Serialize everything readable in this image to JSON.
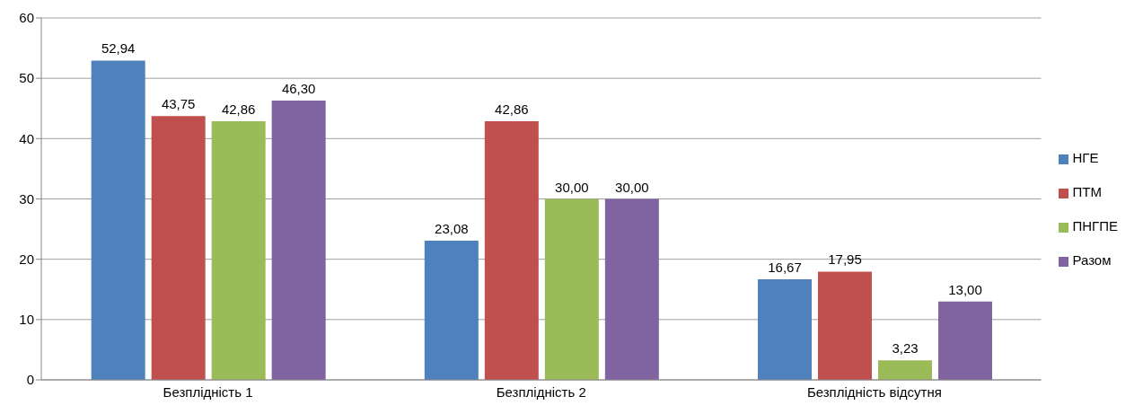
{
  "chart_data": {
    "type": "bar",
    "categories": [
      "Безплідність 1",
      "Безплідність 2",
      "Безплідність відсутня"
    ],
    "series": [
      {
        "name": "НГЕ",
        "color": "#4f81bd",
        "values": [
          52.94,
          23.08,
          16.67
        ],
        "value_labels": [
          "52,94",
          "23,08",
          "16,67"
        ]
      },
      {
        "name": "ПТМ",
        "color": "#c0504d",
        "values": [
          43.75,
          42.86,
          17.95
        ],
        "value_labels": [
          "43,75",
          "42,86",
          "17,95"
        ]
      },
      {
        "name": "ПНГПЕ",
        "color": "#9bbb59",
        "values": [
          42.86,
          30.0,
          3.23
        ],
        "value_labels": [
          "42,86",
          "30,00",
          "3,23"
        ]
      },
      {
        "name": "Разом",
        "color": "#8064a2",
        "values": [
          46.3,
          30.0,
          13.0
        ],
        "value_labels": [
          "46,30",
          "30,00",
          "13,00"
        ]
      }
    ],
    "ylim": [
      0,
      60
    ],
    "yticks": [
      0,
      10,
      20,
      30,
      40,
      50,
      60
    ],
    "grid": "y",
    "legend": "right"
  }
}
